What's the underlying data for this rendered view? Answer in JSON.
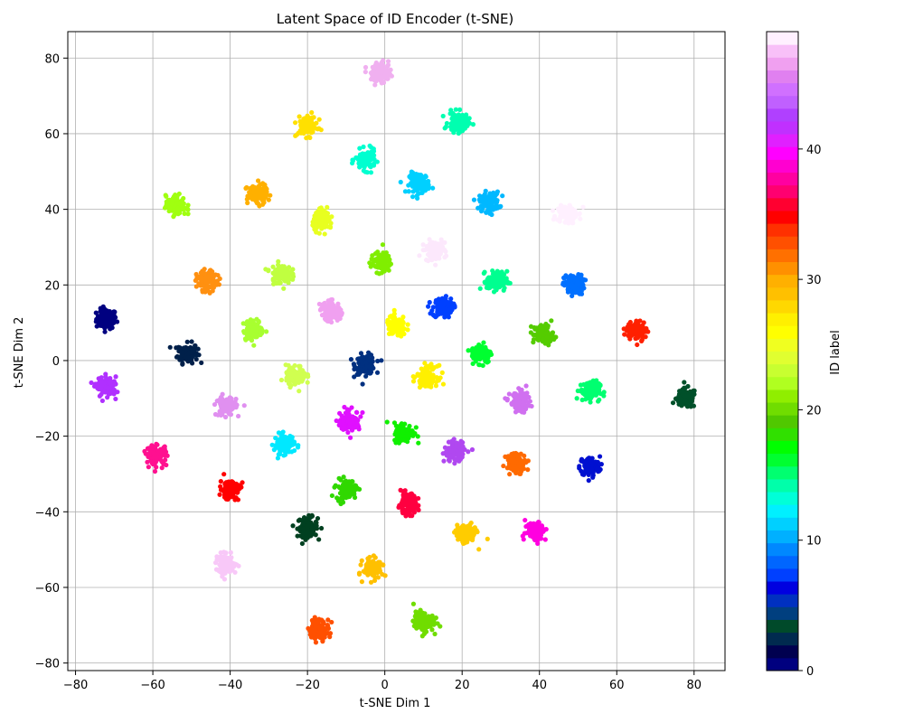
{
  "chart_data": {
    "type": "scatter",
    "title": "Latent Space of ID Encoder (t-SNE)",
    "xlabel": "t-SNE Dim 1",
    "ylabel": "t-SNE Dim 2",
    "xlim": [
      -82,
      88
    ],
    "ylim": [
      -82,
      87
    ],
    "xticks": [
      -80,
      -60,
      -40,
      -20,
      0,
      20,
      40,
      60,
      80
    ],
    "yticks": [
      -80,
      -60,
      -40,
      -20,
      0,
      20,
      40,
      60,
      80
    ],
    "grid": true,
    "colorbar": {
      "label": "ID label",
      "range": [
        0,
        49
      ],
      "ticks": [
        0,
        10,
        20,
        30,
        40
      ],
      "palette": [
        "#00007f",
        "#00004f",
        "#002a4f",
        "#004a2a",
        "#003f7f",
        "#0030c0",
        "#0000e0",
        "#0040ff",
        "#0066ff",
        "#0088ff",
        "#00b0ff",
        "#00d0ff",
        "#00f0ff",
        "#00ffd8",
        "#00ffaa",
        "#00ff70",
        "#00ff30",
        "#00ff00",
        "#30e000",
        "#50c800",
        "#70dd00",
        "#90ee00",
        "#b0ff20",
        "#c8ff30",
        "#e0ff30",
        "#f0ff20",
        "#ffff00",
        "#fff000",
        "#ffd800",
        "#ffc000",
        "#ffb000",
        "#ff9000",
        "#ff7000",
        "#ff5000",
        "#ff3000",
        "#ff0000",
        "#ff0030",
        "#ff0070",
        "#ff00a0",
        "#ff00d0",
        "#ff00ff",
        "#e020ff",
        "#c030ff",
        "#b040ff",
        "#c060ff",
        "#d070ff",
        "#e080f0",
        "#f0a0f0",
        "#f8c0f8",
        "#fff0ff"
      ]
    },
    "clusters": [
      {
        "x": -72,
        "y": 11,
        "color": "#000080",
        "label_id": 0
      },
      {
        "x": -51,
        "y": 2,
        "color": "#00204a",
        "label_id": 1
      },
      {
        "x": -20,
        "y": -44,
        "color": "#004020",
        "label_id": 2
      },
      {
        "x": 78,
        "y": -10,
        "color": "#00502a",
        "label_id": 3
      },
      {
        "x": -5,
        "y": -1,
        "color": "#003080",
        "label_id": 4
      },
      {
        "x": 53,
        "y": -28,
        "color": "#0010d0",
        "label_id": 6
      },
      {
        "x": 15,
        "y": 14,
        "color": "#0040ff",
        "label_id": 7
      },
      {
        "x": 49,
        "y": 20,
        "color": "#0070ff",
        "label_id": 8
      },
      {
        "x": 27,
        "y": 42,
        "color": "#00b8ff",
        "label_id": 9
      },
      {
        "x": 9,
        "y": 47,
        "color": "#00d0ff",
        "label_id": 10
      },
      {
        "x": -26,
        "y": -22,
        "color": "#00e8ff",
        "label_id": 11
      },
      {
        "x": -5,
        "y": 53,
        "color": "#00ffd0",
        "label_id": 12
      },
      {
        "x": 19,
        "y": 63,
        "color": "#00ffb0",
        "label_id": 13
      },
      {
        "x": 53,
        "y": -8,
        "color": "#00ff70",
        "label_id": 14
      },
      {
        "x": 29,
        "y": 21,
        "color": "#00ff90",
        "label_id": 15
      },
      {
        "x": 25,
        "y": 2,
        "color": "#00ff30",
        "label_id": 16
      },
      {
        "x": 5,
        "y": -19,
        "color": "#10f000",
        "label_id": 17
      },
      {
        "x": -10,
        "y": -34,
        "color": "#30d800",
        "label_id": 18
      },
      {
        "x": 41,
        "y": 7,
        "color": "#55cc00",
        "label_id": 19
      },
      {
        "x": 10,
        "y": -69,
        "color": "#70dd00",
        "label_id": 20
      },
      {
        "x": -1,
        "y": 26,
        "color": "#80ee00",
        "label_id": 21
      },
      {
        "x": -54,
        "y": 41,
        "color": "#a0ff10",
        "label_id": 22
      },
      {
        "x": -34,
        "y": 8,
        "color": "#a8ff30",
        "label_id": 23
      },
      {
        "x": -27,
        "y": 23,
        "color": "#c0ff40",
        "label_id": 24
      },
      {
        "x": -23,
        "y": -4,
        "color": "#d0ff50",
        "label_id": 25
      },
      {
        "x": -16,
        "y": 37,
        "color": "#e8ff20",
        "label_id": 26
      },
      {
        "x": 3,
        "y": 9,
        "color": "#ffff00",
        "label_id": 27
      },
      {
        "x": 11,
        "y": -4,
        "color": "#fff000",
        "label_id": 28
      },
      {
        "x": -20,
        "y": 62,
        "color": "#ffe000",
        "label_id": 29
      },
      {
        "x": 21,
        "y": -46,
        "color": "#ffcc00",
        "label_id": 30
      },
      {
        "x": -3,
        "y": -55,
        "color": "#ffc000",
        "label_id": 31
      },
      {
        "x": -33,
        "y": 44,
        "color": "#ffb000",
        "label_id": 32
      },
      {
        "x": -46,
        "y": 21,
        "color": "#ff9010",
        "label_id": 33
      },
      {
        "x": 34,
        "y": -27,
        "color": "#ff6a00",
        "label_id": 34
      },
      {
        "x": -17,
        "y": -71,
        "color": "#ff5000",
        "label_id": 35
      },
      {
        "x": 65,
        "y": 8,
        "color": "#ff2000",
        "label_id": 36
      },
      {
        "x": -40,
        "y": -34,
        "color": "#ff0000",
        "label_id": 37
      },
      {
        "x": 6,
        "y": -38,
        "color": "#ff0040",
        "label_id": 38
      },
      {
        "x": -59,
        "y": -25,
        "color": "#ff1090",
        "label_id": 39
      },
      {
        "x": 39,
        "y": -45,
        "color": "#ff00e0",
        "label_id": 40
      },
      {
        "x": -9,
        "y": -16,
        "color": "#e010ff",
        "label_id": 41
      },
      {
        "x": -72,
        "y": -7,
        "color": "#b030ff",
        "label_id": 42
      },
      {
        "x": 18,
        "y": -24,
        "color": "#b048f0",
        "label_id": 43
      },
      {
        "x": 35,
        "y": -11,
        "color": "#d070f0",
        "label_id": 44
      },
      {
        "x": -41,
        "y": -12,
        "color": "#e090f0",
        "label_id": 45
      },
      {
        "x": -14,
        "y": 13,
        "color": "#f0a0f0",
        "label_id": 46
      },
      {
        "x": -1,
        "y": 76,
        "color": "#f0b0f0",
        "label_id": 47
      },
      {
        "x": -41,
        "y": -54,
        "color": "#f8c8f8",
        "label_id": 48
      },
      {
        "x": 13,
        "y": 29,
        "color": "#fce8fc",
        "label_id": 49
      },
      {
        "x": 47,
        "y": 39,
        "color": "#fff0ff",
        "label_id": 49
      }
    ]
  }
}
